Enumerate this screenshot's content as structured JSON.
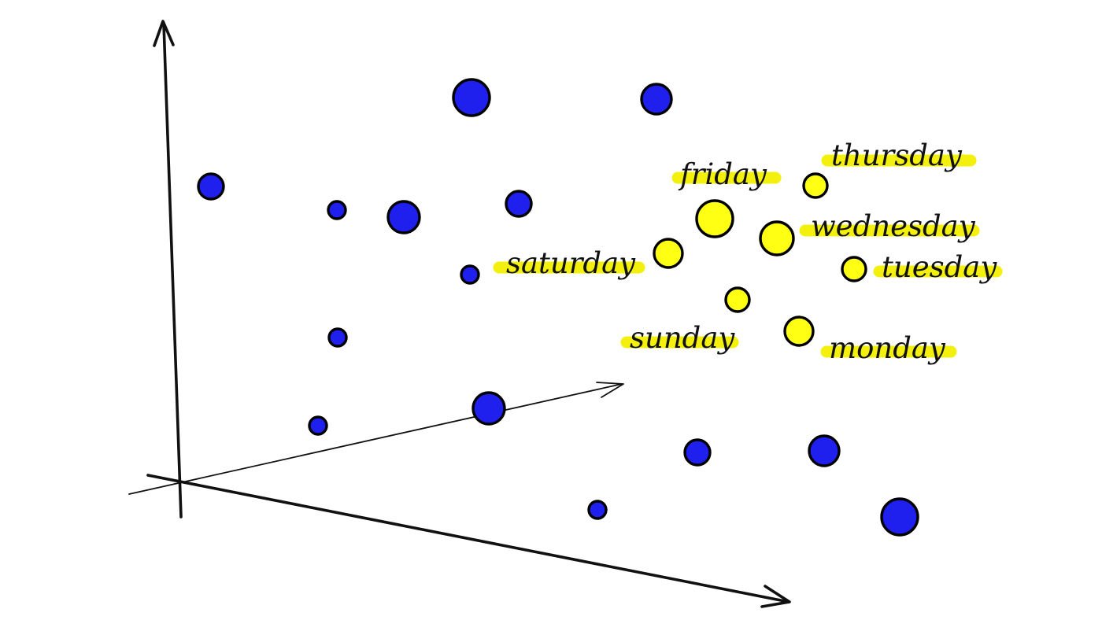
{
  "colors": {
    "background": "#ffffff",
    "other_word_point": "#1f20ee",
    "weekday_point": "#ffff14",
    "highlight": "#f4f00e",
    "outline": "#000000"
  },
  "labels": {
    "friday": "friday",
    "thursday": "thursday",
    "wednesday": "wednesday",
    "saturday": "saturday",
    "tuesday": "tuesday",
    "sunday": "sunday",
    "monday": "monday"
  }
}
